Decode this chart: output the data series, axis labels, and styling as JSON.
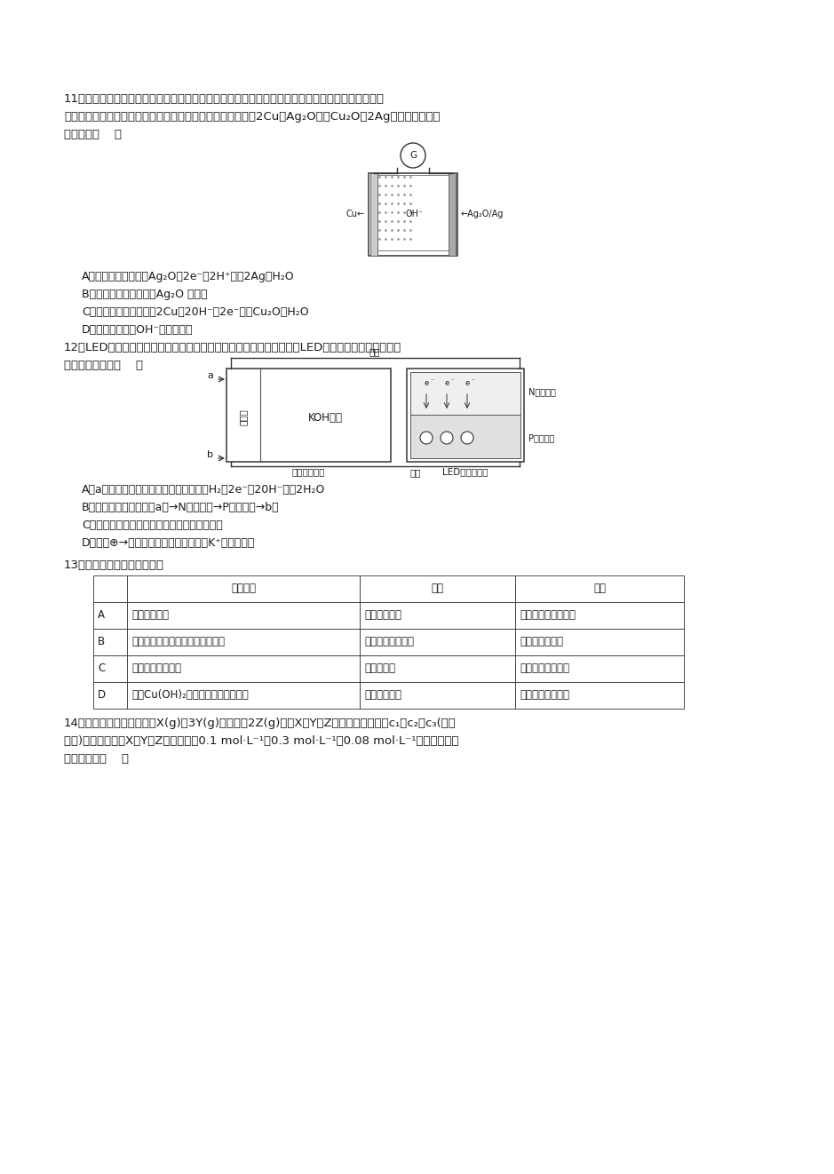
{
  "bg_color": "#ffffff",
  "text_color": "#1a1a1a",
  "q11_line1": "11．普通水泥在固化过程中自由水分子减少并形成碱性溶液。根据这个特点，科学家发明了测水泥初",
  "q11_line2": "凝时间的某种方法。此法的原理如图所示，反应的总方程式为2Cu＋Ag₂O＝＝Cu₂O＋2Ag，下列有关说法",
  "q11_line3": "正确的是（    ）",
  "q11_A": "A．正极电极反应式为Ag₂O＋2e⁻＋2H⁺＝＝2Ag＋H₂O",
  "q11_B": "B．测定原理示意图中，Ag₂O 为负极",
  "q11_C": "C．负极的电极反应式为2Cu＋20H⁻－2e⁻＝＝Cu₂O＋H₂O",
  "q11_D": "D．电池工作时，OH⁻向正极移动",
  "q12_line1": "12．LED产品具有耗电量低、寿命长的特点。如图是氢氧燃料电池驱动LED屏发光的装置，下列有关",
  "q12_line2": "叙述不正确的是（    ）",
  "q12_A": "A．a处通入的气体是氢气，电极反应式为H₂－2e⁻＋20H⁻＝＝2H₂O",
  "q12_B": "B．装置中电子的流向为a极→N型半导体→P型半导体→b极",
  "q12_C": "C．装置中的能量转化至少涉及三种形式的能量",
  "q12_D": "D．图中⊕→表示来自氢氧燃料电池中的K⁺的移动方向",
  "q13_line": "13．下列实验结论不正确的是",
  "table_headers": [
    "",
    "实验操作",
    "现象",
    "结论"
  ],
  "table_rows": [
    [
      "A",
      "食醋浸泡水垢",
      "产生无色气体",
      "乙酸的酸性比碳酸强"
    ],
    [
      "B",
      "乙醇与橙色酸性重铬酸钾溶液混合",
      "橙色溶液变为绿色",
      "乙醇具有还原性"
    ],
    [
      "C",
      "碘酒滴到土豆片上",
      "土豆片变蓝",
      "淀粉遇碘元素变蓝"
    ],
    [
      "D",
      "新制Cu(OH)₂与葡萄糖溶液混合加热",
      "产生红色沉淀",
      "葡萄糖具有还原性"
    ]
  ],
  "q14_line1": "14．一定条件下，对于反应X(g)＋3Y(g)＝＝＝＝2Z(g)，若X、Y、Z的起始浓度分别为c₁、c₂、c₃(均不",
  "q14_line2": "为零)。达平衡时，X、Y、Z浓度分别为0.1 mol·L⁻¹、0.3 mol·L⁻¹和0.08 mol·L⁻¹，则下列判断",
  "q14_line3": "不合理的是（    ）"
}
